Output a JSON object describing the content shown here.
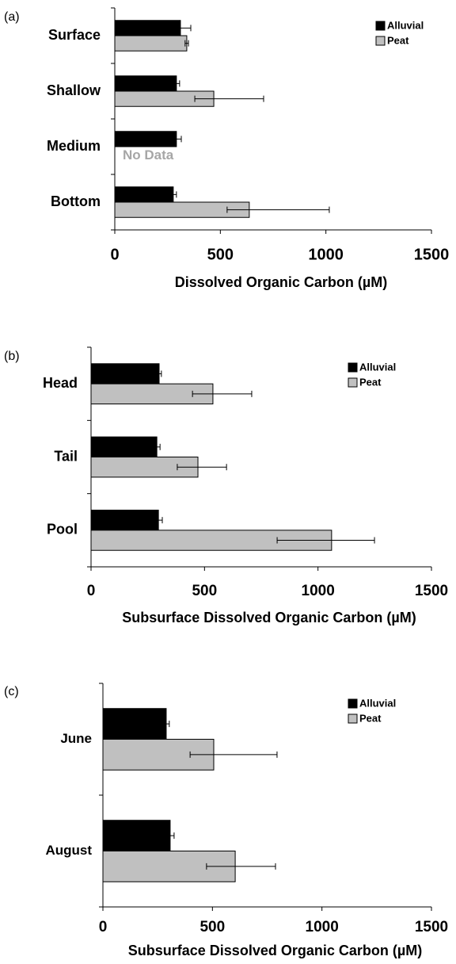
{
  "chart_data": [
    {
      "type": "hbar",
      "panel_label": "(a)",
      "x_label": "Dissolved Organic Carbon (µM)",
      "categories": [
        "Surface",
        "Shallow",
        "Medium",
        "Bottom"
      ],
      "series": [
        {
          "name": "Alluvial",
          "color": "#000000",
          "values": [
            311,
            292,
            292,
            277
          ],
          "err_minus": [
            49,
            15,
            23,
            15
          ],
          "err_plus": [
            49,
            15,
            23,
            15
          ]
        },
        {
          "name": "Peat",
          "color": "#c0c0c0",
          "values": [
            341,
            469,
            null,
            637
          ],
          "err_minus": [
            8,
            90,
            null,
            105
          ],
          "err_plus": [
            8,
            236,
            null,
            379
          ]
        }
      ],
      "annotation": "No Data",
      "xlim": [
        0,
        1500
      ],
      "xticks": [
        0,
        500,
        1000,
        1500
      ]
    },
    {
      "type": "hbar",
      "panel_label": "(b)",
      "x_label": "Subsurface Dissolved Organic Carbon (µM)",
      "categories": [
        "Head",
        "Tail",
        "Pool"
      ],
      "series": [
        {
          "name": "Alluvial",
          "color": "#000000",
          "values": [
            300,
            290,
            297
          ],
          "err_minus": [
            10,
            14,
            17
          ],
          "err_plus": [
            10,
            14,
            17
          ]
        },
        {
          "name": "Peat",
          "color": "#c0c0c0",
          "values": [
            537,
            471,
            1060
          ],
          "err_minus": [
            90,
            91,
            240
          ],
          "err_plus": [
            171,
            126,
            189
          ]
        }
      ],
      "xlim": [
        0,
        1500
      ],
      "xticks": [
        0,
        500,
        1000,
        1500
      ]
    },
    {
      "type": "hbar",
      "panel_label": "(c)",
      "x_label": "Subsurface Dissolved Organic Carbon (µM)",
      "categories": [
        "June",
        "August"
      ],
      "series": [
        {
          "name": "Alluvial",
          "color": "#000000",
          "values": [
            289,
            307
          ],
          "err_minus": [
            14,
            18
          ],
          "err_plus": [
            14,
            18
          ]
        },
        {
          "name": "Peat",
          "color": "#c0c0c0",
          "values": [
            506,
            604
          ],
          "err_minus": [
            108,
            131
          ],
          "err_plus": [
            289,
            184
          ]
        }
      ],
      "xlim": [
        0,
        1500
      ],
      "xticks": [
        0,
        500,
        1000,
        1500
      ]
    }
  ]
}
